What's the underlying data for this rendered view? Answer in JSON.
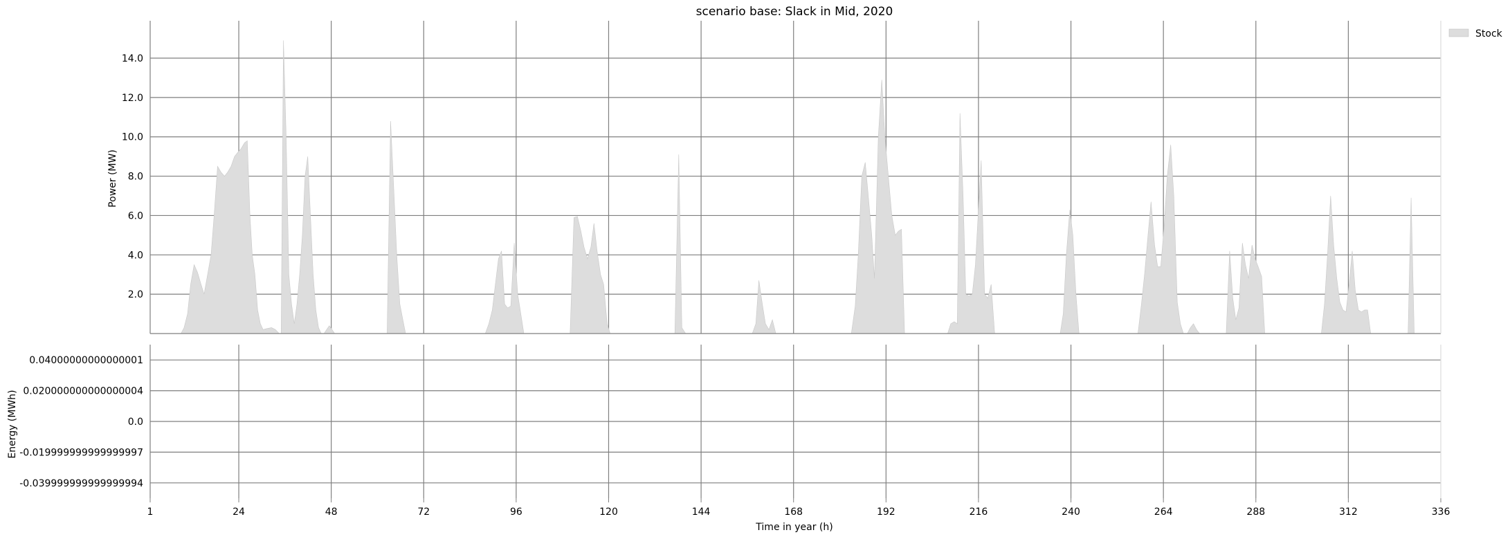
{
  "chart_data": [
    {
      "type": "area",
      "title": "scenario base: Slack in Mid, 2020",
      "xlabel": "",
      "ylabel": "Power (MW)",
      "xlim": [
        1,
        336
      ],
      "ylim": [
        0,
        15.9
      ],
      "y_ticks": [
        2.0,
        4.0,
        6.0,
        8.0,
        10.0,
        12.0,
        14.0
      ],
      "y_tick_labels": [
        "2.0",
        "4.0",
        "6.0",
        "8.0",
        "10.0",
        "12.0",
        "14.0"
      ],
      "x_ticks": [
        24,
        48,
        72,
        96,
        120,
        144,
        168,
        192,
        216,
        240,
        264,
        288,
        312,
        336
      ],
      "grid": true,
      "legend_position": "top-right",
      "series": [
        {
          "name": "Stock",
          "color": "#dddddd",
          "points": [
            [
              1,
              0
            ],
            [
              9,
              0
            ],
            [
              9.8,
              0.3
            ],
            [
              10.7,
              1
            ],
            [
              11.5,
              2.5
            ],
            [
              12.4,
              3.5
            ],
            [
              13.3,
              3.1
            ],
            [
              14.2,
              2.5
            ],
            [
              15,
              2
            ],
            [
              15.9,
              3
            ],
            [
              16.8,
              4
            ],
            [
              17.6,
              6
            ],
            [
              18.5,
              8.5
            ],
            [
              19.4,
              8.2
            ],
            [
              20.3,
              8
            ],
            [
              21.1,
              8.2
            ],
            [
              22,
              8.5
            ],
            [
              22.9,
              9
            ],
            [
              23.7,
              9.2
            ],
            [
              24.6,
              9.4
            ],
            [
              25.5,
              9.7
            ],
            [
              26.2,
              9.8
            ],
            [
              26.9,
              6
            ],
            [
              27.5,
              4
            ],
            [
              28.2,
              3
            ],
            [
              28.9,
              1.2
            ],
            [
              29.6,
              0.5
            ],
            [
              30.3,
              0.2
            ],
            [
              31.2,
              0.25
            ],
            [
              32.5,
              0.3
            ],
            [
              33.5,
              0.2
            ],
            [
              34.5,
              0
            ],
            [
              34.5,
              0
            ],
            [
              35,
              0
            ],
            [
              35.6,
              14.9
            ],
            [
              36.3,
              10
            ],
            [
              37,
              3
            ],
            [
              37.7,
              1.5
            ],
            [
              38.4,
              0.5
            ],
            [
              39.1,
              1.5
            ],
            [
              39.8,
              3
            ],
            [
              40.5,
              5
            ],
            [
              41.2,
              8
            ],
            [
              41.9,
              9
            ],
            [
              42.6,
              6
            ],
            [
              43.3,
              3
            ],
            [
              44,
              1.2
            ],
            [
              44.7,
              0.3
            ],
            [
              45.4,
              0
            ],
            [
              46.1,
              0
            ],
            [
              46.8,
              0.2
            ],
            [
              47.5,
              0.4
            ],
            [
              48.2,
              0.2
            ],
            [
              48.9,
              0
            ],
            [
              62.5,
              0
            ],
            [
              63.4,
              10.8
            ],
            [
              64.2,
              7.5
            ],
            [
              65,
              4
            ],
            [
              65.8,
              1.5
            ],
            [
              66.5,
              0.8
            ],
            [
              67.3,
              0
            ],
            [
              88,
              0
            ],
            [
              88.9,
              0.5
            ],
            [
              89.8,
              1.2
            ],
            [
              90.6,
              2.5
            ],
            [
              91.4,
              3.8
            ],
            [
              92.2,
              4.2
            ],
            [
              93,
              1.5
            ],
            [
              93.8,
              1.3
            ],
            [
              94.6,
              1.4
            ],
            [
              95.5,
              4.6
            ],
            [
              96.4,
              2
            ],
            [
              97.2,
              1
            ],
            [
              98,
              0
            ],
            [
              110,
              0
            ],
            [
              111,
              5.9
            ],
            [
              111.9,
              5.95
            ],
            [
              112.8,
              5.2
            ],
            [
              113.6,
              4.4
            ],
            [
              114.5,
              3.8
            ],
            [
              115.4,
              4.4
            ],
            [
              116.2,
              5.6
            ],
            [
              117,
              4.2
            ],
            [
              117.9,
              3
            ],
            [
              118.7,
              2.5
            ],
            [
              119.6,
              0.5
            ],
            [
              120.4,
              0
            ],
            [
              137.2,
              0
            ],
            [
              138.2,
              9.1
            ],
            [
              139,
              0.3
            ],
            [
              140,
              0
            ],
            [
              157.3,
              0
            ],
            [
              158.2,
              0.5
            ],
            [
              159,
              2.7
            ],
            [
              159.9,
              1.5
            ],
            [
              160.7,
              0.5
            ],
            [
              161.6,
              0.2
            ],
            [
              162.5,
              0.7
            ],
            [
              163.4,
              0
            ],
            [
              183,
              0
            ],
            [
              184,
              1.4
            ],
            [
              184.8,
              4
            ],
            [
              185.7,
              8
            ],
            [
              186.6,
              8.7
            ],
            [
              187.4,
              7
            ],
            [
              188.3,
              5
            ],
            [
              189,
              2.8
            ],
            [
              190,
              10
            ],
            [
              190.9,
              12.9
            ],
            [
              191.7,
              10
            ],
            [
              192.6,
              8
            ],
            [
              193.5,
              6
            ],
            [
              194.4,
              5
            ],
            [
              195.2,
              5.2
            ],
            [
              196,
              5.3
            ],
            [
              196.8,
              0
            ],
            [
              208,
              0
            ],
            [
              208.8,
              0.5
            ],
            [
              209.7,
              0.6
            ],
            [
              210.5,
              0.5
            ],
            [
              211.2,
              11.2
            ],
            [
              212,
              7
            ],
            [
              212.7,
              2
            ],
            [
              213.5,
              1.9
            ],
            [
              214.4,
              2
            ],
            [
              215.2,
              3.5
            ],
            [
              215.9,
              6
            ],
            [
              216.7,
              8.8
            ],
            [
              217.6,
              2
            ],
            [
              218.4,
              1.8
            ],
            [
              219.3,
              2.5
            ],
            [
              220.2,
              0
            ],
            [
              237.2,
              0
            ],
            [
              238,
              1
            ],
            [
              238.8,
              4
            ],
            [
              239.7,
              6.3
            ],
            [
              240.5,
              5
            ],
            [
              241.3,
              2
            ],
            [
              242.1,
              0
            ],
            [
              257.4,
              0
            ],
            [
              258.3,
              1.5
            ],
            [
              259.1,
              3
            ],
            [
              260,
              5
            ],
            [
              260.8,
              6.7
            ],
            [
              261.7,
              4.5
            ],
            [
              262.5,
              3.4
            ],
            [
              263.3,
              3.4
            ],
            [
              264.2,
              5.5
            ],
            [
              265,
              8
            ],
            [
              265.9,
              9.6
            ],
            [
              266.7,
              7
            ],
            [
              267.6,
              1.6
            ],
            [
              268.4,
              0.5
            ],
            [
              269.2,
              0
            ],
            [
              270.2,
              0
            ],
            [
              271,
              0.3
            ],
            [
              271.8,
              0.5
            ],
            [
              272.6,
              0.2
            ],
            [
              273.4,
              0
            ],
            [
              280.3,
              0
            ],
            [
              281.2,
              4.2
            ],
            [
              282,
              1.8
            ],
            [
              282.8,
              0.7
            ],
            [
              283.6,
              1.3
            ],
            [
              284.5,
              4.6
            ],
            [
              285.3,
              3.5
            ],
            [
              286.1,
              2.8
            ],
            [
              287,
              4.5
            ],
            [
              287.8,
              3.8
            ],
            [
              288.6,
              3.4
            ],
            [
              289.5,
              2.9
            ],
            [
              290.3,
              0
            ],
            [
              305,
              0
            ],
            [
              305.8,
              1.5
            ],
            [
              306.6,
              4
            ],
            [
              307.4,
              7
            ],
            [
              308.2,
              4.5
            ],
            [
              309,
              2.8
            ],
            [
              309.8,
              1.6
            ],
            [
              310.6,
              1.2
            ],
            [
              311.4,
              1.1
            ],
            [
              312.2,
              2.5
            ],
            [
              313,
              4.2
            ],
            [
              313.8,
              2.2
            ],
            [
              314.6,
              1.2
            ],
            [
              315.4,
              1.1
            ],
            [
              316.2,
              1.2
            ],
            [
              317,
              1.2
            ],
            [
              317.8,
              0
            ],
            [
              327.5,
              0
            ],
            [
              328.3,
              6.9
            ],
            [
              329.1,
              0
            ],
            [
              336,
              0
            ]
          ]
        }
      ]
    },
    {
      "type": "line",
      "title": "",
      "xlabel": "Time in year (h)",
      "ylabel": "Energy (MWh)",
      "xlim": [
        1,
        336
      ],
      "ylim": [
        -0.05,
        0.05
      ],
      "y_ticks": [
        -0.04,
        -0.02,
        0.0,
        0.02,
        0.04
      ],
      "y_tick_labels": [
        "-0.039999999999999994",
        "-0.019999999999999997",
        "0.0",
        "0.020000000000000004",
        "0.04000000000000001"
      ],
      "x_ticks": [
        1,
        24,
        48,
        72,
        96,
        120,
        144,
        168,
        192,
        216,
        240,
        264,
        288,
        312,
        336
      ],
      "x_tick_labels": [
        "1",
        "24",
        "48",
        "72",
        "96",
        "120",
        "144",
        "168",
        "192",
        "216",
        "240",
        "264",
        "288",
        "312",
        "336"
      ],
      "grid": true,
      "series": []
    }
  ],
  "colors": {
    "grid": "#7f7f7f",
    "axis": "#7f7f7f",
    "area": "#dddddd"
  }
}
